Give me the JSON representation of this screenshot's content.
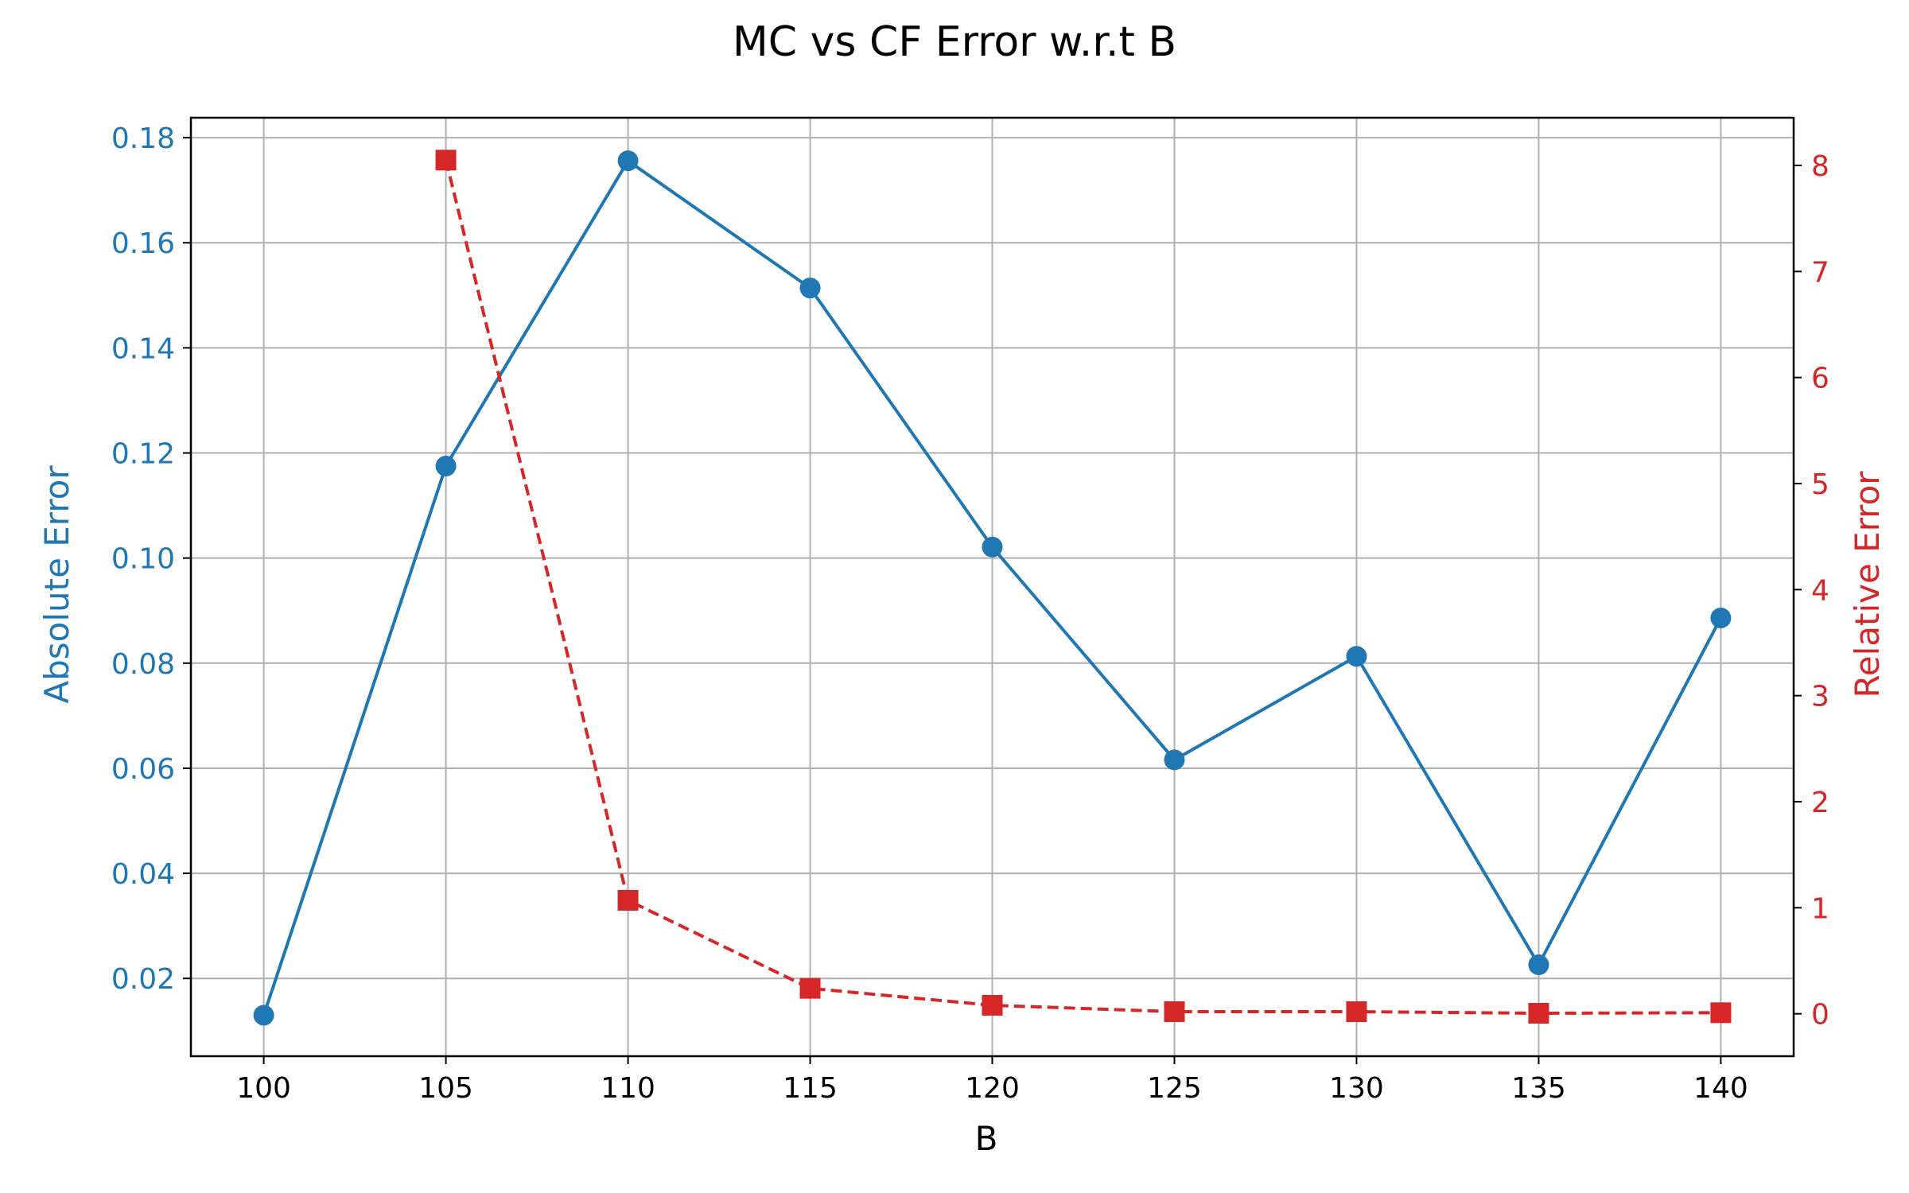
{
  "chart_data": {
    "type": "line",
    "title": "MC vs CF Error w.r.t B",
    "xlabel": "B",
    "ylabel_left": "Absolute Error",
    "ylabel_right": "Relative Error",
    "x": [
      100,
      105,
      110,
      115,
      120,
      125,
      130,
      135,
      140
    ],
    "xlim": [
      98,
      142
    ],
    "xticks": [
      100,
      105,
      110,
      115,
      120,
      125,
      130,
      135,
      140
    ],
    "ylim_left": [
      0.0052,
      0.1838
    ],
    "yticks_left": [
      0.02,
      0.04,
      0.06,
      0.08,
      0.1,
      0.12,
      0.14,
      0.16,
      0.18
    ],
    "ylim_right": [
      -0.4,
      8.45
    ],
    "yticks_right": [
      0,
      1,
      2,
      3,
      4,
      5,
      6,
      7,
      8
    ],
    "grid": true,
    "series": [
      {
        "axis": "left",
        "color": "#1f77b4",
        "line_style": "solid",
        "marker": "circle",
        "points": [
          [
            100,
            0.013
          ],
          [
            105,
            0.1175
          ],
          [
            110,
            0.1756
          ],
          [
            115,
            0.1514
          ],
          [
            120,
            0.1021
          ],
          [
            125,
            0.0616
          ],
          [
            130,
            0.0813
          ],
          [
            135,
            0.0226
          ],
          [
            140,
            0.0886
          ]
        ]
      },
      {
        "axis": "right",
        "color": "#d62728",
        "line_style": "dashed",
        "marker": "square",
        "points": [
          [
            105,
            8.05
          ],
          [
            110,
            1.07
          ],
          [
            115,
            0.24
          ],
          [
            120,
            0.08
          ],
          [
            125,
            0.02
          ],
          [
            130,
            0.02
          ],
          [
            135,
            0.005
          ],
          [
            140,
            0.01
          ]
        ]
      }
    ],
    "colors": {
      "left_axis": "#1f77b4",
      "right_axis": "#d62728",
      "grid": "#b0b0b0",
      "spine": "#000000"
    }
  }
}
